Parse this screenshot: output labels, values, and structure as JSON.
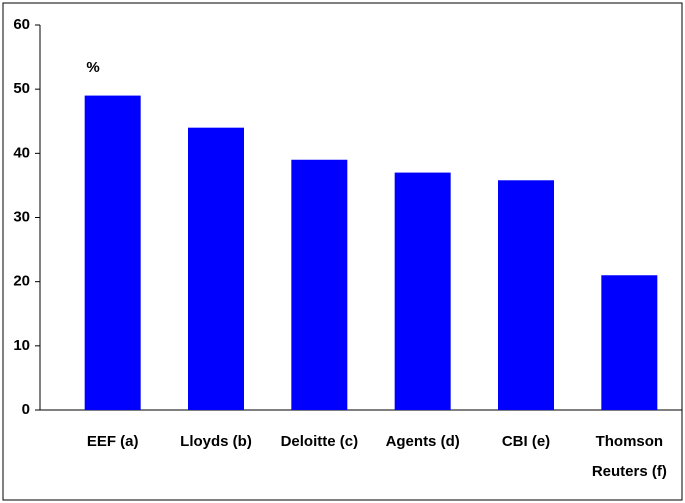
{
  "chart_data": {
    "type": "bar",
    "categories": [
      "EEF (a)",
      "Lloyds (b)",
      "Deloitte (c)",
      "Agents (d)",
      "CBI (e)",
      "Thomson Reuters (f)"
    ],
    "values": [
      49,
      44,
      39,
      37,
      35.8,
      21
    ],
    "color": "#0000ff",
    "annotation": "%",
    "ylim": [
      0,
      60
    ],
    "yticks": [
      0,
      10,
      20,
      30,
      40,
      50,
      60
    ],
    "grid": false
  }
}
